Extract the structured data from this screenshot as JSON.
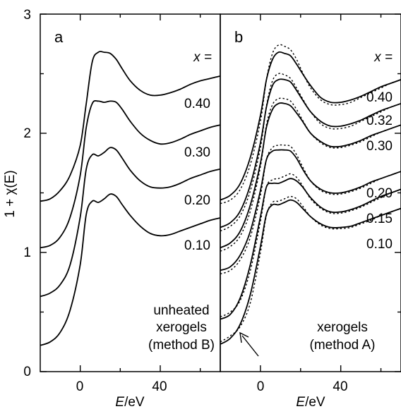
{
  "chart_data": [
    {
      "type": "line",
      "panel": "a",
      "xlabel_var": "E",
      "xlabel_unit": "/eV",
      "ylabel": "1 + χ(E)",
      "xlim": [
        -20,
        70
      ],
      "ylim": [
        0,
        3
      ],
      "x_ticks": [
        "0",
        "40"
      ],
      "y_ticks": [
        "0",
        "1",
        "2",
        "3"
      ],
      "legend_header": "x =",
      "note_lines": [
        "unheated",
        "xerogels",
        "(method B)"
      ],
      "grid": false,
      "series": [
        {
          "name": "0.40",
          "style": "solid",
          "x": [
            -20,
            -15,
            -10,
            -5,
            0,
            3,
            6,
            9,
            12,
            15,
            18,
            21,
            25,
            30,
            35,
            40,
            45,
            50,
            55,
            60,
            65,
            70
          ],
          "y": [
            1.43,
            1.45,
            1.52,
            1.65,
            1.9,
            2.25,
            2.6,
            2.68,
            2.68,
            2.67,
            2.62,
            2.54,
            2.44,
            2.36,
            2.32,
            2.32,
            2.34,
            2.37,
            2.41,
            2.44,
            2.46,
            2.48
          ]
        },
        {
          "name": "0.30",
          "style": "solid",
          "x": [
            -20,
            -15,
            -10,
            -5,
            0,
            3,
            6,
            9,
            12,
            15,
            18,
            21,
            25,
            30,
            35,
            40,
            45,
            50,
            55,
            60,
            65,
            70
          ],
          "y": [
            1.04,
            1.06,
            1.13,
            1.3,
            1.65,
            2.05,
            2.25,
            2.27,
            2.26,
            2.27,
            2.26,
            2.2,
            2.1,
            2.0,
            1.94,
            1.91,
            1.92,
            1.95,
            1.99,
            2.02,
            2.05,
            2.07
          ]
        },
        {
          "name": "0.20",
          "style": "solid",
          "x": [
            -20,
            -15,
            -10,
            -5,
            0,
            3,
            6,
            9,
            12,
            15,
            18,
            21,
            25,
            30,
            35,
            40,
            45,
            50,
            55,
            60,
            65,
            70
          ],
          "y": [
            0.63,
            0.66,
            0.73,
            0.9,
            1.3,
            1.7,
            1.82,
            1.81,
            1.84,
            1.88,
            1.86,
            1.79,
            1.69,
            1.6,
            1.55,
            1.54,
            1.55,
            1.58,
            1.62,
            1.65,
            1.68,
            1.7
          ]
        },
        {
          "name": "0.10",
          "style": "solid",
          "x": [
            -20,
            -15,
            -10,
            -5,
            0,
            3,
            6,
            9,
            12,
            15,
            18,
            21,
            25,
            30,
            35,
            40,
            45,
            50,
            55,
            60,
            65,
            70
          ],
          "y": [
            0.22,
            0.25,
            0.33,
            0.52,
            0.9,
            1.32,
            1.43,
            1.42,
            1.45,
            1.49,
            1.47,
            1.4,
            1.31,
            1.22,
            1.16,
            1.14,
            1.15,
            1.18,
            1.21,
            1.24,
            1.27,
            1.29
          ]
        }
      ]
    },
    {
      "type": "line",
      "panel": "b",
      "xlabel_var": "E",
      "xlabel_unit": "/eV",
      "xlim": [
        -20,
        70
      ],
      "ylim": [
        0,
        3
      ],
      "x_ticks": [
        "0",
        "40"
      ],
      "legend_header": "x =",
      "note_lines": [
        "xerogels",
        "(method A)"
      ],
      "grid": false,
      "series": [
        {
          "name": "0.40",
          "style": "solid",
          "x": [
            -20,
            -15,
            -10,
            -5,
            0,
            3,
            6,
            9,
            12,
            15,
            18,
            21,
            25,
            30,
            35,
            40,
            45,
            50,
            55,
            60,
            65,
            70
          ],
          "y": [
            1.44,
            1.48,
            1.58,
            1.8,
            2.15,
            2.45,
            2.62,
            2.68,
            2.67,
            2.65,
            2.58,
            2.5,
            2.4,
            2.3,
            2.26,
            2.26,
            2.28,
            2.31,
            2.35,
            2.39,
            2.42,
            2.45
          ]
        },
        {
          "name": "0.40",
          "style": "dotted",
          "x": [
            -20,
            -15,
            -10,
            -5,
            0,
            3,
            6,
            9,
            12,
            15,
            18,
            21,
            25,
            30,
            35,
            40,
            45,
            50,
            55,
            60,
            65,
            70
          ],
          "y": [
            1.41,
            1.44,
            1.53,
            1.74,
            2.1,
            2.45,
            2.67,
            2.74,
            2.73,
            2.7,
            2.62,
            2.51,
            2.38,
            2.28,
            2.24,
            2.24,
            2.26,
            2.3,
            2.34,
            2.38,
            2.42,
            2.45
          ]
        },
        {
          "name": "0.32",
          "style": "solid",
          "x": [
            -20,
            -15,
            -10,
            -5,
            0,
            3,
            6,
            9,
            12,
            15,
            18,
            21,
            25,
            30,
            35,
            40,
            45,
            50,
            55,
            60,
            65,
            70
          ],
          "y": [
            1.21,
            1.25,
            1.35,
            1.57,
            1.92,
            2.22,
            2.4,
            2.45,
            2.45,
            2.43,
            2.36,
            2.28,
            2.18,
            2.1,
            2.06,
            2.06,
            2.08,
            2.11,
            2.15,
            2.19,
            2.22,
            2.25
          ]
        },
        {
          "name": "0.32",
          "style": "dotted",
          "x": [
            -20,
            -15,
            -10,
            -5,
            0,
            3,
            6,
            9,
            12,
            15,
            18,
            21,
            25,
            30,
            35,
            40,
            45,
            50,
            55,
            60,
            65,
            70
          ],
          "y": [
            1.18,
            1.22,
            1.31,
            1.52,
            1.88,
            2.23,
            2.44,
            2.5,
            2.49,
            2.46,
            2.38,
            2.29,
            2.18,
            2.08,
            2.04,
            2.04,
            2.06,
            2.1,
            2.14,
            2.18,
            2.22,
            2.25
          ]
        },
        {
          "name": "0.30",
          "style": "solid",
          "x": [
            -20,
            -15,
            -10,
            -5,
            0,
            3,
            6,
            9,
            12,
            15,
            18,
            21,
            25,
            30,
            35,
            40,
            45,
            50,
            55,
            60,
            65,
            70
          ],
          "y": [
            1.04,
            1.08,
            1.18,
            1.4,
            1.75,
            2.05,
            2.2,
            2.25,
            2.25,
            2.23,
            2.17,
            2.1,
            2.0,
            1.93,
            1.89,
            1.89,
            1.91,
            1.94,
            1.98,
            2.01,
            2.04,
            2.07
          ]
        },
        {
          "name": "0.30",
          "style": "dotted",
          "x": [
            -20,
            -15,
            -10,
            -5,
            0,
            3,
            6,
            9,
            12,
            15,
            18,
            21,
            25,
            30,
            35,
            40,
            45,
            50,
            55,
            60,
            65,
            70
          ],
          "y": [
            1.01,
            1.05,
            1.14,
            1.35,
            1.72,
            2.07,
            2.24,
            2.29,
            2.29,
            2.27,
            2.2,
            2.11,
            2.0,
            1.92,
            1.88,
            1.88,
            1.9,
            1.93,
            1.97,
            2.01,
            2.04,
            2.07
          ]
        },
        {
          "name": "0.20",
          "style": "solid",
          "x": [
            -20,
            -15,
            -10,
            -5,
            0,
            3,
            6,
            9,
            12,
            15,
            18,
            21,
            25,
            30,
            35,
            40,
            45,
            50,
            55,
            60,
            65,
            70
          ],
          "y": [
            0.85,
            0.88,
            0.98,
            1.18,
            1.52,
            1.78,
            1.85,
            1.86,
            1.86,
            1.85,
            1.79,
            1.7,
            1.6,
            1.53,
            1.5,
            1.5,
            1.52,
            1.55,
            1.59,
            1.62,
            1.65,
            1.68
          ]
        },
        {
          "name": "0.20",
          "style": "dotted",
          "x": [
            -20,
            -15,
            -10,
            -5,
            0,
            3,
            6,
            9,
            12,
            15,
            18,
            21,
            25,
            30,
            35,
            40,
            45,
            50,
            55,
            60,
            65,
            70
          ],
          "y": [
            0.82,
            0.85,
            0.94,
            1.13,
            1.48,
            1.78,
            1.88,
            1.9,
            1.9,
            1.89,
            1.82,
            1.72,
            1.6,
            1.52,
            1.49,
            1.49,
            1.51,
            1.54,
            1.58,
            1.62,
            1.65,
            1.68
          ]
        },
        {
          "name": "0.15",
          "style": "solid",
          "x": [
            -20,
            -15,
            -10,
            -5,
            0,
            3,
            6,
            9,
            12,
            15,
            18,
            21,
            25,
            30,
            35,
            40,
            45,
            50,
            55,
            60,
            65,
            70
          ],
          "y": [
            0.44,
            0.48,
            0.62,
            0.9,
            1.3,
            1.55,
            1.58,
            1.58,
            1.6,
            1.62,
            1.6,
            1.55,
            1.46,
            1.38,
            1.34,
            1.34,
            1.36,
            1.39,
            1.43,
            1.47,
            1.5,
            1.53
          ]
        },
        {
          "name": "0.15",
          "style": "dotted",
          "x": [
            -20,
            -15,
            -10,
            -5,
            0,
            3,
            6,
            9,
            12,
            15,
            18,
            21,
            25,
            30,
            35,
            40,
            45,
            50,
            55,
            60,
            65,
            70
          ],
          "y": [
            0.46,
            0.5,
            0.6,
            0.85,
            1.26,
            1.55,
            1.61,
            1.62,
            1.64,
            1.66,
            1.63,
            1.56,
            1.45,
            1.37,
            1.33,
            1.33,
            1.35,
            1.38,
            1.42,
            1.46,
            1.5,
            1.53
          ]
        },
        {
          "name": "0.10",
          "style": "solid",
          "x": [
            -20,
            -15,
            -10,
            -5,
            0,
            3,
            6,
            9,
            12,
            15,
            18,
            21,
            25,
            30,
            35,
            40,
            45,
            50,
            55,
            60,
            65,
            70
          ],
          "y": [
            0.23,
            0.28,
            0.4,
            0.65,
            1.05,
            1.32,
            1.4,
            1.4,
            1.42,
            1.44,
            1.42,
            1.37,
            1.3,
            1.24,
            1.21,
            1.21,
            1.22,
            1.25,
            1.28,
            1.31,
            1.34,
            1.37
          ]
        },
        {
          "name": "0.10",
          "style": "dotted",
          "x": [
            -20,
            -15,
            -10,
            -5,
            0,
            3,
            6,
            9,
            12,
            15,
            18,
            21,
            25,
            30,
            35,
            40,
            45,
            50,
            55,
            60,
            65,
            70
          ],
          "y": [
            0.25,
            0.3,
            0.38,
            0.58,
            1.0,
            1.31,
            1.42,
            1.43,
            1.45,
            1.47,
            1.45,
            1.39,
            1.3,
            1.23,
            1.2,
            1.2,
            1.21,
            1.24,
            1.27,
            1.31,
            1.34,
            1.37
          ]
        }
      ]
    }
  ]
}
